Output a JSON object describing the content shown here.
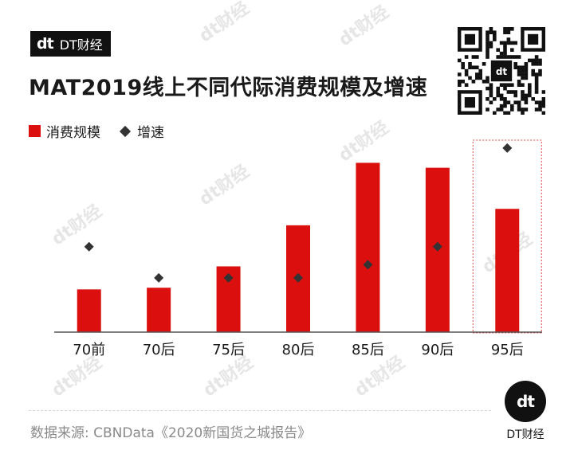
{
  "brand": {
    "logo_mark": "dt",
    "name": "DT财经"
  },
  "title": "MAT2019线上不同代际消费规模及增速",
  "legend": {
    "bar_label": "消费规模",
    "marker_label": "增速"
  },
  "chart_data": {
    "type": "bar",
    "categories": [
      "70前",
      "70后",
      "75后",
      "80后",
      "85后",
      "90后",
      "95后"
    ],
    "series": [
      {
        "name": "消费规模",
        "kind": "bar",
        "values": [
          26,
          27,
          40,
          65,
          103,
          100,
          75
        ]
      },
      {
        "name": "增速",
        "kind": "marker",
        "values": [
          52,
          33,
          33,
          33,
          41,
          52,
          112
        ]
      }
    ],
    "ylim": [
      0,
      110
    ],
    "highlight_category": "95后",
    "colors": {
      "bar": "#dc0f0f",
      "marker": "#333333",
      "axis": "#555555",
      "highlight_border": "#e04848"
    }
  },
  "source": "数据来源: CBNData《2020新国货之城报告》",
  "footer": {
    "logo_mark": "dt",
    "brand": "DT财经"
  }
}
